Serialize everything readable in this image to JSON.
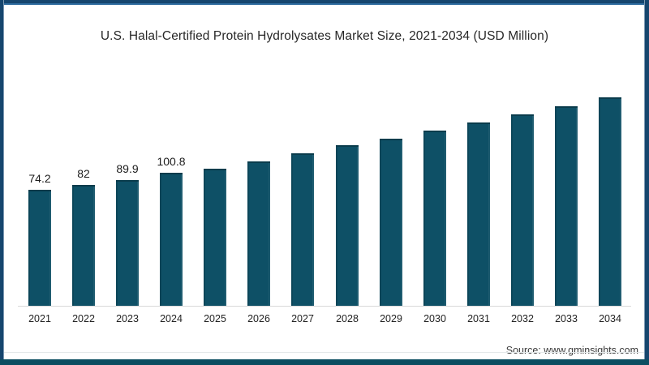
{
  "card": {
    "title": "U.S. Halal-Certified Protein Hydrolysates Market Size, 2021-2034 (USD Million)",
    "source": "Source: www.gminsights.com"
  },
  "colors": {
    "bar": "#0e5066",
    "bar_cap": "#0a3c4c",
    "frame": "#16466e",
    "frame_accent": "#2d6b9e",
    "frame_bottom": "#0b4e61",
    "axis_line": "#d9d9d9",
    "title_text": "#272727",
    "label_text": "#1c1c1c"
  },
  "chart_data": {
    "type": "bar",
    "title": "U.S. Halal-Certified Protein Hydrolysates Market Size, 2021-2034 (USD Million)",
    "xlabel": "",
    "ylabel": "",
    "unit": "USD Million",
    "categories": [
      "2021",
      "2022",
      "2023",
      "2024",
      "2025",
      "2026",
      "2027",
      "2028",
      "2029",
      "2030",
      "2031",
      "2032",
      "2033",
      "2034"
    ],
    "values": [
      74.2,
      82,
      89.9,
      100.8,
      108,
      120,
      133,
      145,
      156,
      169,
      182,
      195,
      208,
      222
    ],
    "data_labels": [
      "74.2",
      "82",
      "89.9",
      "100.8",
      "",
      "",
      "",
      "",
      "",
      "",
      "",
      "",
      "",
      ""
    ],
    "labeled_years": [
      "2021",
      "2022",
      "2023",
      "2024"
    ],
    "values_note": "values for 2025-2034 estimated from bar heights; no y-axis shown",
    "y_axis_visible": false,
    "grid": false,
    "legend": null,
    "bar_color": "#0e5066"
  }
}
